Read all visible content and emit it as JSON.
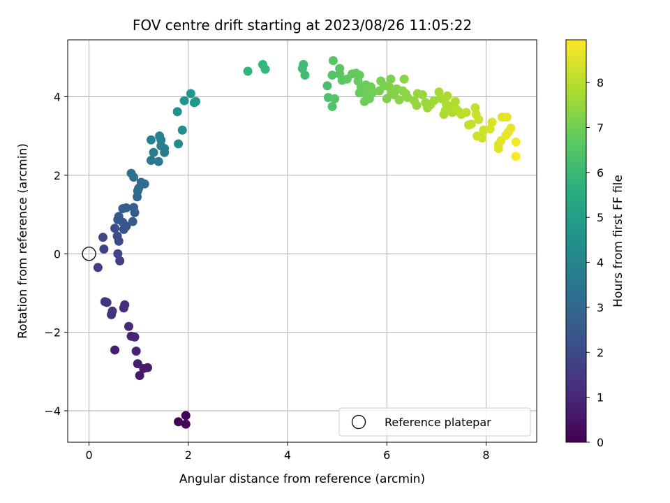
{
  "chart_data": {
    "type": "scatter",
    "title": "FOV centre drift starting at 2023/08/26 11:05:22",
    "xlabel": "Angular distance from reference (arcmin)",
    "ylabel": "Rotation from reference (arcmin)",
    "xlim": [
      -0.43,
      9.02
    ],
    "ylim": [
      -4.8,
      5.45
    ],
    "xticks": [
      0,
      2,
      4,
      6,
      8
    ],
    "yticks": [
      -4,
      -2,
      0,
      2,
      4
    ],
    "grid": true,
    "colormap": "viridis",
    "colorbar": {
      "label": "Hours from first FF file",
      "range": [
        0,
        8.95
      ],
      "ticks": [
        0,
        1,
        2,
        3,
        4,
        5,
        6,
        7,
        8
      ]
    },
    "legend": {
      "placement": "lower-right",
      "entries": [
        "Reference platepar"
      ]
    },
    "reference_point": {
      "x": 0,
      "y": 0,
      "label": "Reference platepar"
    },
    "series": [
      {
        "points": [
          [
            1.95,
            -4.12,
            0.05
          ],
          [
            1.8,
            -4.28,
            0.1
          ],
          [
            1.95,
            -4.34,
            0.15
          ],
          [
            1.02,
            -3.1,
            0.6
          ],
          [
            1.1,
            -2.92,
            0.65
          ],
          [
            1.18,
            -2.9,
            0.7
          ],
          [
            0.98,
            -2.8,
            0.75
          ],
          [
            0.52,
            -2.45,
            0.8
          ],
          [
            0.95,
            -2.48,
            0.85
          ],
          [
            0.85,
            -2.1,
            0.9
          ],
          [
            0.92,
            -2.12,
            0.95
          ],
          [
            0.8,
            -1.85,
            1.0
          ],
          [
            0.7,
            -1.38,
            1.1
          ],
          [
            0.72,
            -1.3,
            1.15
          ],
          [
            0.32,
            -1.22,
            1.25
          ],
          [
            0.36,
            -1.24,
            1.3
          ],
          [
            0.45,
            -1.55,
            1.35
          ],
          [
            0.47,
            -1.46,
            1.4
          ],
          [
            0.18,
            -0.35,
            1.65
          ],
          [
            0.62,
            -0.18,
            1.7
          ],
          [
            0.3,
            0.12,
            1.8
          ],
          [
            0.58,
            0.0,
            1.85
          ],
          [
            0.6,
            0.32,
            1.9
          ],
          [
            0.28,
            0.42,
            1.95
          ],
          [
            0.57,
            0.45,
            2.0
          ],
          [
            0.52,
            0.65,
            2.2
          ],
          [
            0.7,
            0.62,
            2.25
          ],
          [
            0.75,
            0.7,
            2.3
          ],
          [
            0.68,
            0.8,
            2.35
          ],
          [
            0.58,
            0.87,
            2.4
          ],
          [
            0.6,
            0.95,
            2.45
          ],
          [
            0.88,
            0.82,
            2.5
          ],
          [
            0.92,
            1.05,
            2.6
          ],
          [
            0.68,
            1.15,
            2.65
          ],
          [
            0.75,
            1.17,
            2.7
          ],
          [
            0.9,
            1.18,
            2.75
          ],
          [
            0.97,
            1.45,
            3.0
          ],
          [
            0.98,
            1.6,
            3.05
          ],
          [
            1.0,
            1.67,
            3.1
          ],
          [
            1.05,
            1.82,
            3.15
          ],
          [
            1.12,
            1.78,
            3.2
          ],
          [
            0.85,
            2.05,
            3.3
          ],
          [
            0.9,
            1.95,
            3.35
          ],
          [
            1.25,
            2.38,
            3.6
          ],
          [
            1.4,
            2.35,
            3.65
          ],
          [
            1.3,
            2.58,
            3.7
          ],
          [
            1.52,
            2.58,
            3.75
          ],
          [
            1.52,
            2.68,
            3.8
          ],
          [
            1.45,
            2.75,
            3.85
          ],
          [
            1.45,
            2.9,
            3.9
          ],
          [
            1.25,
            2.9,
            3.95
          ],
          [
            1.42,
            3.0,
            4.0
          ],
          [
            1.8,
            2.8,
            4.3
          ],
          [
            1.88,
            3.15,
            4.4
          ],
          [
            1.78,
            3.62,
            4.5
          ],
          [
            1.92,
            3.9,
            4.6
          ],
          [
            2.05,
            4.08,
            4.75
          ],
          [
            2.15,
            3.88,
            4.8
          ],
          [
            2.12,
            3.85,
            4.85
          ],
          [
            3.2,
            4.65,
            5.8
          ],
          [
            3.5,
            4.82,
            5.9
          ],
          [
            3.55,
            4.7,
            5.95
          ],
          [
            4.32,
            4.82,
            6.1
          ],
          [
            4.3,
            4.72,
            6.15
          ],
          [
            4.35,
            4.55,
            6.2
          ],
          [
            4.8,
            4.28,
            6.35
          ],
          [
            4.82,
            3.98,
            6.4
          ],
          [
            4.9,
            3.75,
            6.45
          ],
          [
            4.95,
            3.95,
            6.5
          ],
          [
            4.9,
            4.55,
            6.5
          ],
          [
            4.92,
            4.92,
            6.55
          ],
          [
            5.05,
            4.58,
            6.6
          ],
          [
            5.05,
            4.72,
            6.62
          ],
          [
            5.1,
            4.42,
            6.65
          ],
          [
            5.2,
            4.45,
            6.7
          ],
          [
            5.3,
            4.58,
            6.75
          ],
          [
            5.38,
            4.6,
            6.78
          ],
          [
            5.45,
            4.55,
            6.8
          ],
          [
            5.42,
            4.4,
            6.82
          ],
          [
            5.48,
            4.25,
            6.84
          ],
          [
            5.45,
            4.1,
            6.86
          ],
          [
            5.55,
            4.2,
            6.88
          ],
          [
            5.58,
            4.3,
            6.9
          ],
          [
            5.55,
            3.88,
            6.92
          ],
          [
            5.6,
            4.02,
            6.94
          ],
          [
            5.65,
            3.95,
            6.96
          ],
          [
            5.62,
            4.18,
            6.98
          ],
          [
            5.68,
            4.25,
            7.0
          ],
          [
            5.72,
            4.12,
            7.02
          ],
          [
            5.88,
            4.4,
            7.1
          ],
          [
            5.85,
            4.15,
            7.12
          ],
          [
            5.95,
            4.28,
            7.15
          ],
          [
            6.0,
            3.95,
            7.18
          ],
          [
            6.08,
            4.45,
            7.2
          ],
          [
            6.05,
            4.25,
            7.22
          ],
          [
            6.1,
            4.1,
            7.25
          ],
          [
            6.15,
            4.05,
            7.28
          ],
          [
            6.2,
            4.2,
            7.3
          ],
          [
            6.25,
            3.92,
            7.32
          ],
          [
            6.32,
            4.15,
            7.35
          ],
          [
            6.35,
            4.45,
            7.38
          ],
          [
            6.38,
            4.08,
            7.4
          ],
          [
            6.42,
            3.98,
            7.42
          ],
          [
            6.55,
            3.9,
            7.5
          ],
          [
            6.6,
            3.78,
            7.52
          ],
          [
            6.62,
            4.08,
            7.55
          ],
          [
            6.72,
            4.05,
            7.58
          ],
          [
            6.78,
            3.85,
            7.6
          ],
          [
            6.82,
            3.72,
            7.62
          ],
          [
            6.88,
            3.8,
            7.65
          ],
          [
            6.95,
            3.9,
            7.68
          ],
          [
            7.05,
            4.12,
            7.75
          ],
          [
            7.1,
            3.95,
            7.78
          ],
          [
            7.15,
            3.55,
            7.8
          ],
          [
            7.18,
            3.65,
            7.82
          ],
          [
            7.2,
            3.8,
            7.84
          ],
          [
            7.22,
            4.02,
            7.86
          ],
          [
            7.28,
            3.75,
            7.88
          ],
          [
            7.32,
            3.6,
            7.9
          ],
          [
            7.38,
            3.88,
            7.92
          ],
          [
            7.4,
            3.68,
            7.94
          ],
          [
            7.45,
            3.62,
            7.96
          ],
          [
            7.5,
            3.55,
            7.98
          ],
          [
            7.6,
            3.6,
            8.1
          ],
          [
            7.65,
            3.28,
            8.12
          ],
          [
            7.7,
            3.3,
            8.15
          ],
          [
            7.78,
            3.72,
            8.2
          ],
          [
            7.8,
            3.55,
            8.22
          ],
          [
            7.85,
            3.42,
            8.25
          ],
          [
            7.82,
            3.0,
            8.28
          ],
          [
            7.92,
            2.95,
            8.3
          ],
          [
            7.95,
            3.15,
            8.32
          ],
          [
            8.08,
            3.18,
            8.45
          ],
          [
            8.12,
            3.35,
            8.48
          ],
          [
            8.25,
            2.78,
            8.52
          ],
          [
            8.25,
            2.68,
            8.55
          ],
          [
            8.3,
            2.88,
            8.58
          ],
          [
            8.32,
            3.48,
            8.6
          ],
          [
            8.4,
            3.02,
            8.62
          ],
          [
            8.42,
            3.48,
            8.64
          ],
          [
            8.45,
            3.1,
            8.66
          ],
          [
            8.5,
            3.2,
            8.68
          ],
          [
            8.6,
            2.85,
            8.85
          ],
          [
            8.6,
            2.48,
            8.92
          ]
        ]
      }
    ]
  }
}
